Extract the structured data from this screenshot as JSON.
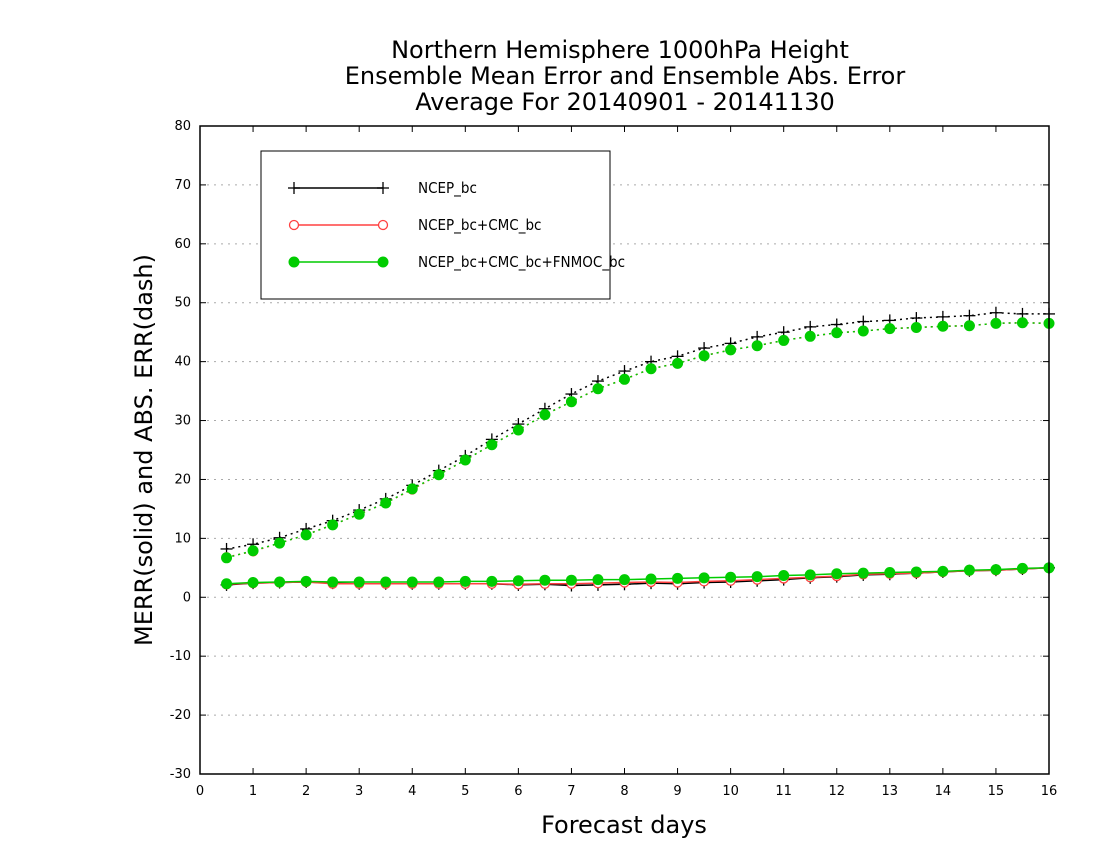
{
  "chart_data": {
    "type": "line",
    "title": [
      "Northern Hemisphere 1000hPa Height",
      "Ensemble Mean Error and Ensemble Abs. Error",
      "Average For 20140901 - 20141130"
    ],
    "xlabel": "Forecast days",
    "ylabel": "MERR(solid) and ABS. ERR(dash)",
    "xlim": [
      0,
      16
    ],
    "ylim": [
      -30,
      80
    ],
    "xticks": [
      0,
      1,
      2,
      3,
      4,
      5,
      6,
      7,
      8,
      9,
      10,
      11,
      12,
      13,
      14,
      15,
      16
    ],
    "yticks": [
      -30,
      -20,
      -10,
      0,
      10,
      20,
      30,
      40,
      50,
      60,
      70,
      80
    ],
    "grid": "horizontal dotted",
    "legend_position": "top-left",
    "x": [
      0.5,
      1,
      1.5,
      2,
      2.5,
      3,
      3.5,
      4,
      4.5,
      5,
      5.5,
      6,
      6.5,
      7,
      7.5,
      8,
      8.5,
      9,
      9.5,
      10,
      10.5,
      11,
      11.5,
      12,
      12.5,
      13,
      13.5,
      14,
      14.5,
      15,
      15.5,
      16
    ],
    "series": [
      {
        "name": "NCEP_bc",
        "color": "#000000",
        "marker": "plus",
        "merr": [
          2.1,
          2.4,
          2.5,
          2.6,
          2.4,
          2.3,
          2.3,
          2.3,
          2.3,
          2.3,
          2.3,
          2.1,
          2.2,
          2.0,
          2.1,
          2.2,
          2.4,
          2.3,
          2.5,
          2.6,
          2.8,
          3.0,
          3.3,
          3.5,
          3.8,
          3.9,
          4.1,
          4.3,
          4.5,
          4.6,
          4.8,
          5.0
        ],
        "abs_err": [
          8.2,
          9.0,
          10.1,
          11.6,
          13.0,
          14.8,
          16.7,
          19.0,
          21.5,
          24.0,
          26.8,
          29.4,
          32.0,
          34.5,
          36.7,
          38.4,
          40.0,
          40.9,
          42.3,
          43.1,
          44.2,
          45.0,
          45.9,
          46.3,
          46.8,
          47.0,
          47.4,
          47.6,
          47.8,
          48.3,
          48.1,
          48.1
        ]
      },
      {
        "name": "NCEP_bc+CMC_bc",
        "color": "#ff4040",
        "marker": "open-circle",
        "merr": [
          2.2,
          2.4,
          2.5,
          2.6,
          2.3,
          2.3,
          2.3,
          2.3,
          2.3,
          2.3,
          2.3,
          2.2,
          2.3,
          2.3,
          2.4,
          2.5,
          2.6,
          2.5,
          2.7,
          2.8,
          3.0,
          3.2,
          3.4,
          3.6,
          3.9,
          4.0,
          4.1,
          4.3,
          4.5,
          4.6,
          4.8,
          5.0
        ],
        "abs_err": [
          6.8,
          7.8,
          9.2,
          10.6,
          12.3,
          14.1,
          16.0,
          18.3,
          20.8,
          23.3,
          25.9,
          28.4,
          31.0,
          33.2,
          35.4,
          37.0,
          38.8,
          39.7,
          41.0,
          42.0,
          42.7,
          43.6,
          44.3,
          44.9,
          45.2,
          45.6,
          45.8,
          46.0,
          46.1,
          46.5,
          46.6,
          46.5
        ]
      },
      {
        "name": "NCEP_bc+CMC_bc+FNMOC_bc",
        "color": "#00cc00",
        "marker": "filled-circle",
        "merr": [
          2.3,
          2.5,
          2.6,
          2.7,
          2.6,
          2.6,
          2.6,
          2.6,
          2.6,
          2.7,
          2.7,
          2.8,
          2.9,
          2.9,
          3.0,
          3.0,
          3.1,
          3.2,
          3.3,
          3.4,
          3.5,
          3.7,
          3.8,
          4.0,
          4.1,
          4.2,
          4.3,
          4.4,
          4.6,
          4.7,
          4.9,
          5.0
        ],
        "abs_err": [
          6.7,
          7.9,
          9.2,
          10.6,
          12.3,
          14.1,
          16.0,
          18.4,
          20.8,
          23.3,
          25.9,
          28.4,
          31.0,
          33.2,
          35.4,
          37.0,
          38.8,
          39.7,
          41.0,
          42.0,
          42.7,
          43.6,
          44.3,
          44.9,
          45.2,
          45.6,
          45.8,
          46.0,
          46.1,
          46.5,
          46.6,
          46.5
        ]
      }
    ]
  }
}
